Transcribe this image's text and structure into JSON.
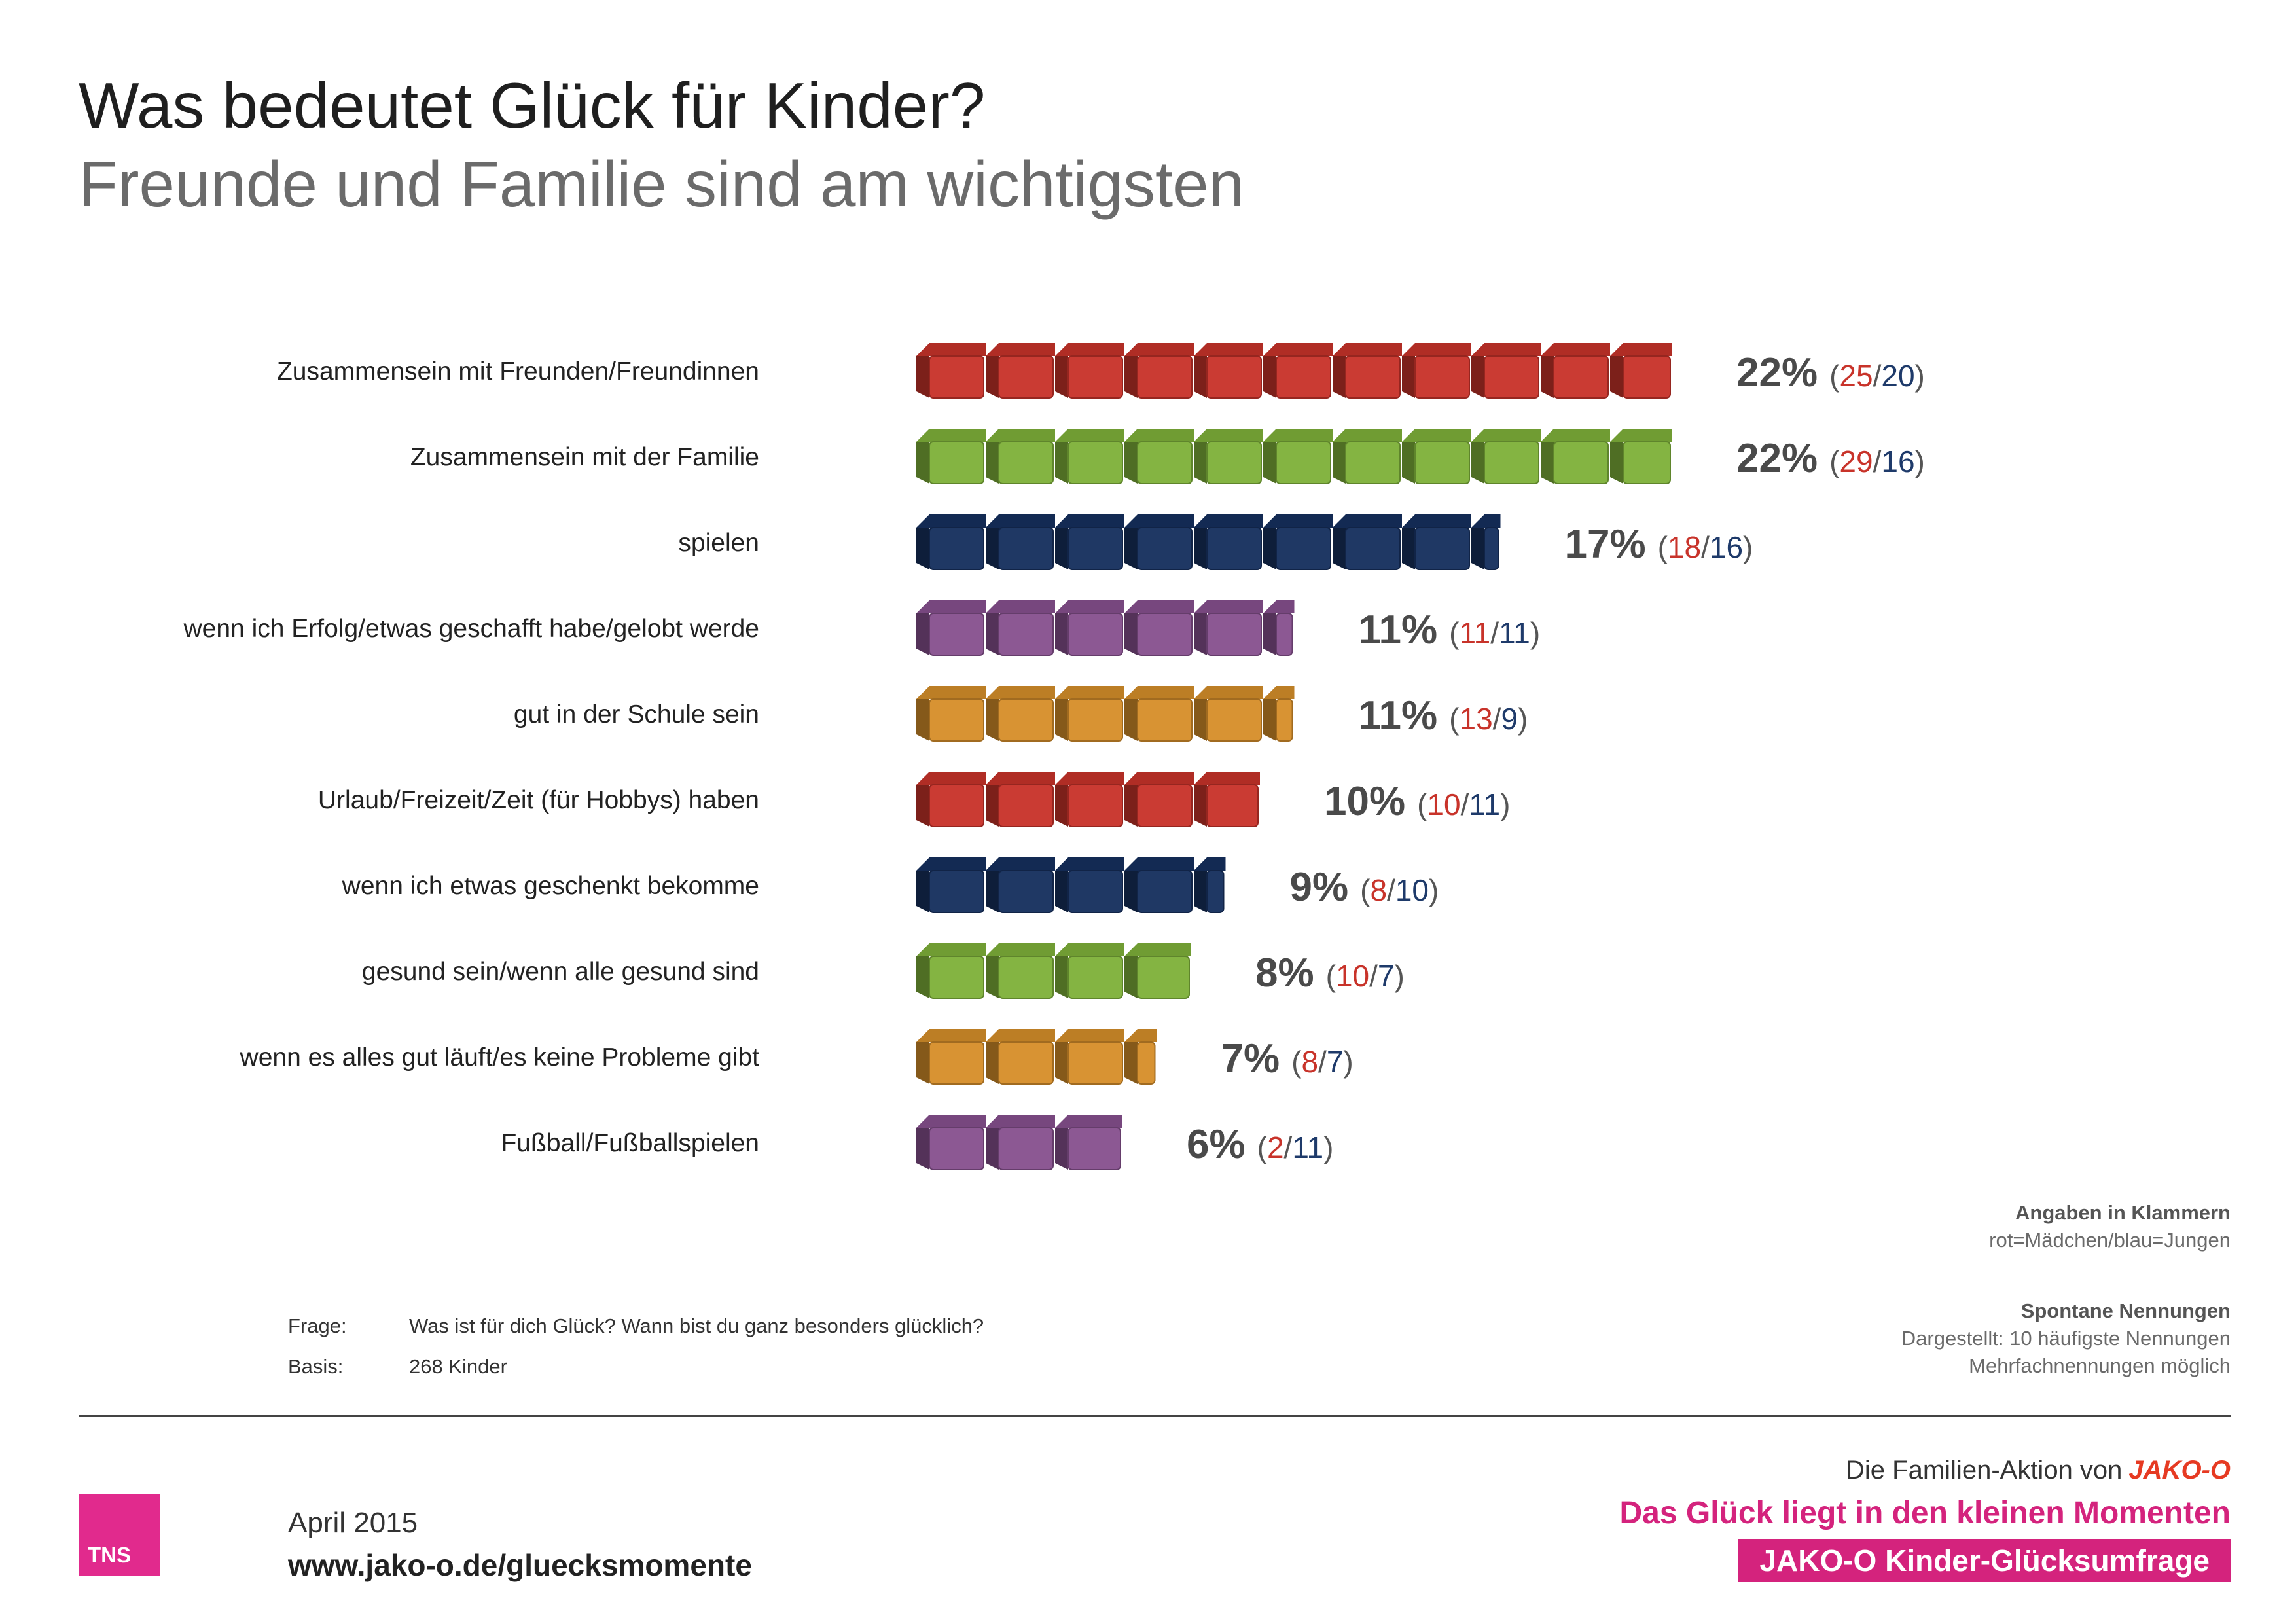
{
  "header": {
    "title": "Was bedeutet Glück für Kinder?",
    "subtitle": "Freunde und Familie sind am wichtigsten"
  },
  "chart_data": {
    "type": "bar",
    "orientation": "horizontal",
    "title": "Was bedeutet Glück für Kinder?",
    "subtitle": "Freunde und Familie sind am wichtigsten",
    "unit": "%",
    "categories": [
      "Zusammensein mit Freunden/Freundinnen",
      "Zusammensein mit der Familie",
      "spielen",
      "wenn ich Erfolg/etwas geschafft habe/gelobt werde",
      "gut in der Schule sein",
      "Urlaub/Freizeit/Zeit (für Hobbys) haben",
      "wenn ich etwas geschenkt bekomme",
      "gesund sein/wenn alle gesund sind",
      "wenn es alles gut läuft/es keine Probleme gibt",
      "Fußball/Fußballspielen"
    ],
    "values": [
      22,
      22,
      17,
      11,
      11,
      10,
      9,
      8,
      7,
      6
    ],
    "value_labels": [
      "22%",
      "22%",
      "17%",
      "11%",
      "11%",
      "10%",
      "9%",
      "8%",
      "7%",
      "6%"
    ],
    "series": [
      {
        "values": [
          25,
          29,
          18,
          11,
          13,
          10,
          8,
          10,
          8,
          2
        ]
      },
      {
        "values": [
          20,
          16,
          16,
          11,
          9,
          11,
          10,
          7,
          7,
          11
        ]
      }
    ],
    "bar_colors": [
      "#c8332a",
      "#7fb13a",
      "#16305e",
      "#87518f",
      "#d68f2a",
      "#c8332a",
      "#16305e",
      "#7fb13a",
      "#d68f2a",
      "#87518f"
    ],
    "split_colors": {
      "girls": "#c8332a",
      "boys": "#1e3a6a",
      "paren": "#555555"
    }
  },
  "notes": {
    "angaben_head": "Angaben in Klammern",
    "angaben_text": "rot=Mädchen/blau=Jungen",
    "spontan_head": "Spontane Nennungen",
    "spontan_line1": "Dargestellt: 10 häufigste Nennungen",
    "spontan_line2": "Mehrfachnennungen möglich"
  },
  "question": {
    "frage_label": "Frage:",
    "frage_text": "Was ist für dich Glück? Wann bist du ganz besonders glücklich?",
    "basis_label": "Basis:",
    "basis_text": "268 Kinder"
  },
  "footer": {
    "tns_logo": "TNS",
    "date": "April 2015",
    "url": "www.jako-o.de/gluecksmomente",
    "aktion": "Die Familien-Aktion von",
    "jako_logo": "JAKO-O",
    "slogan": "Das Glück liegt in den kleinen Momenten",
    "banner": "JAKO-O Kinder-Glücksumfrage"
  }
}
